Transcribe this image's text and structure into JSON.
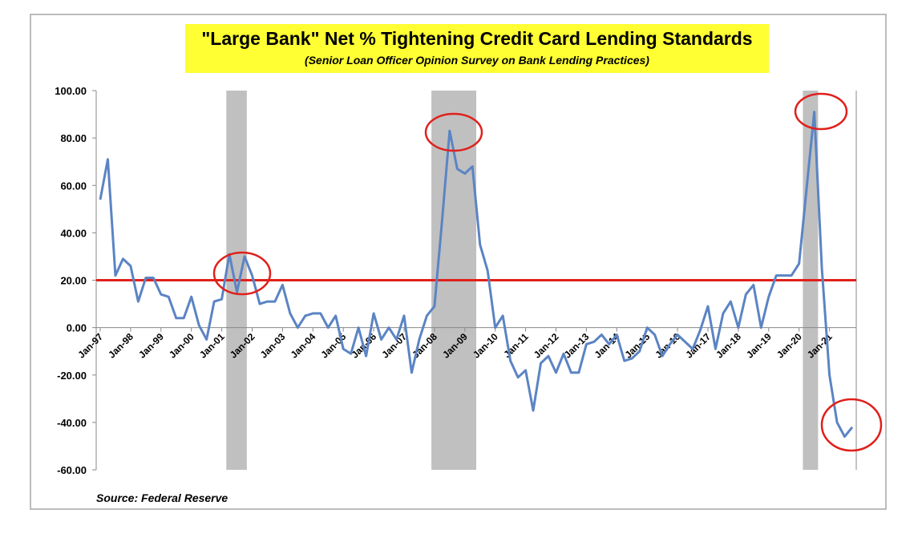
{
  "chart_data": {
    "type": "line",
    "title": "\"Large Bank\" Net % Tightening Credit Card Lending Standards",
    "subtitle": "(Senior Loan Officer Opinion Survey on Bank Lending Practices)",
    "source": "Source: Federal Reserve",
    "categories": [
      "Jan-97",
      null,
      null,
      null,
      "Jan-98",
      null,
      null,
      null,
      "Jan-99",
      null,
      null,
      null,
      "Jan-00",
      null,
      null,
      null,
      "Jan-01",
      null,
      null,
      null,
      "Jan-02",
      null,
      null,
      null,
      "Jan-03",
      null,
      null,
      null,
      "Jan-04",
      null,
      null,
      null,
      "Jan-05",
      null,
      null,
      null,
      "Jan-06",
      null,
      null,
      null,
      "Jan-07",
      null,
      null,
      null,
      "Jan-08",
      null,
      null,
      null,
      "Jan-09",
      null,
      null,
      null,
      "Jan-10",
      null,
      null,
      null,
      "Jan-11",
      null,
      null,
      null,
      "Jan-12",
      null,
      null,
      null,
      "Jan-13",
      null,
      null,
      null,
      "Jan-14",
      null,
      null,
      null,
      "Jan-15",
      null,
      null,
      null,
      "Jan-16",
      null,
      null,
      null,
      "Jan-17",
      null,
      null,
      null,
      "Jan-18",
      null,
      null,
      null,
      "Jan-19",
      null,
      null,
      null,
      "Jan-20",
      null,
      null,
      null,
      "Jan-21",
      null,
      null,
      null
    ],
    "values": [
      54,
      71,
      22,
      29,
      26,
      11,
      21,
      21,
      14,
      13,
      4,
      4,
      13,
      1,
      -5,
      11,
      12,
      31,
      15,
      30,
      22,
      10,
      11,
      11,
      18,
      6,
      0,
      5,
      6,
      6,
      0,
      5,
      -9,
      -11,
      0,
      -12,
      6,
      -5,
      0,
      -5,
      5,
      -19,
      -5,
      5,
      9,
      45,
      83,
      67,
      65,
      68,
      35,
      24,
      0,
      5,
      -14,
      -21,
      -18,
      -35,
      -15,
      -12,
      -19,
      -11,
      -19,
      -19,
      -7,
      -6,
      -3,
      -7,
      -3,
      -14,
      -13,
      -10,
      0,
      -3,
      -12,
      -7,
      -3,
      -6,
      -9,
      -1,
      9,
      -9,
      6,
      11,
      0,
      14,
      18,
      0,
      13,
      22,
      22,
      22,
      27,
      59,
      91,
      25,
      -20,
      -40,
      -46,
      -42
    ],
    "color": "#5b84c4",
    "ylim": [
      -60,
      100
    ],
    "yticks": [
      {
        "value": -60,
        "label": "-60.00"
      },
      {
        "value": -40,
        "label": "-40.00"
      },
      {
        "value": -20,
        "label": "-20.00"
      },
      {
        "value": 0,
        "label": "0.00"
      },
      {
        "value": 20,
        "label": "20.00"
      },
      {
        "value": 40,
        "label": "40.00"
      },
      {
        "value": 60,
        "label": "60.00"
      },
      {
        "value": 80,
        "label": "80.00"
      },
      {
        "value": 100,
        "label": "100.00"
      }
    ],
    "reference_line": {
      "value": 20,
      "color": "#e0201b"
    },
    "shaded_periods": [
      [
        16.6,
        19.3
      ],
      [
        43.6,
        49.5
      ],
      [
        92.5,
        94.5
      ]
    ],
    "shade_color": "#c0c0c0"
  }
}
